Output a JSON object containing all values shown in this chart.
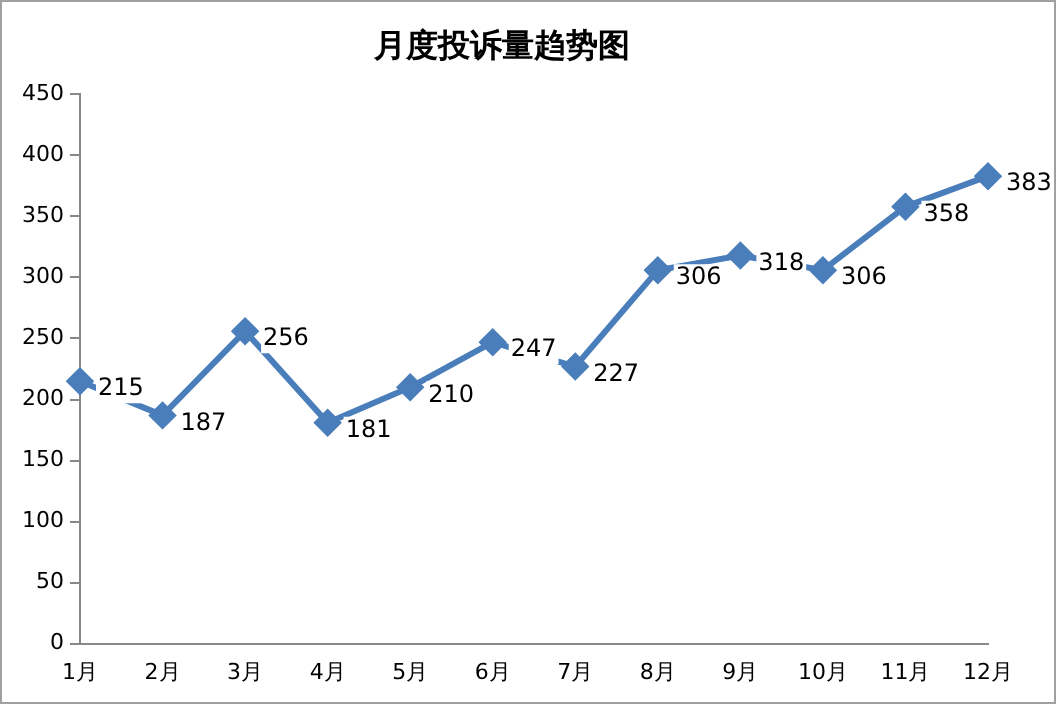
{
  "chart_data": {
    "type": "line",
    "title": "月度投诉量趋势图",
    "categories": [
      "1月",
      "2月",
      "3月",
      "4月",
      "5月",
      "6月",
      "7月",
      "8月",
      "9月",
      "10月",
      "11月",
      "12月"
    ],
    "series": [
      {
        "color": "#4a7ebb",
        "values": [
          215,
          187,
          256,
          181,
          210,
          247,
          227,
          306,
          318,
          306,
          358,
          383
        ]
      }
    ],
    "ylim": [
      0,
      450
    ],
    "yticks": [
      0,
      50,
      100,
      150,
      200,
      250,
      300,
      350,
      400,
      450
    ],
    "grid": false,
    "legend": false,
    "marker": "diamond",
    "line_style": "solid",
    "data_labels": true
  }
}
